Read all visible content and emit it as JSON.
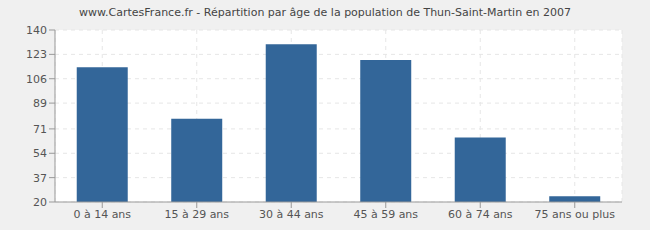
{
  "chart_data": {
    "type": "bar",
    "title": "www.CartesFrance.fr - Répartition par âge de la population de Thun-Saint-Martin en 2007",
    "categories": [
      "0 à 14 ans",
      "15 à 29 ans",
      "30 à 44 ans",
      "45 à 59 ans",
      "60 à 74 ans",
      "75 ans ou plus"
    ],
    "values": [
      114,
      78,
      130,
      119,
      65,
      24
    ],
    "color": "#336699",
    "ylim": [
      20,
      140
    ],
    "yticks": [
      20,
      37,
      54,
      71,
      89,
      106,
      123,
      140
    ],
    "grid": true
  }
}
